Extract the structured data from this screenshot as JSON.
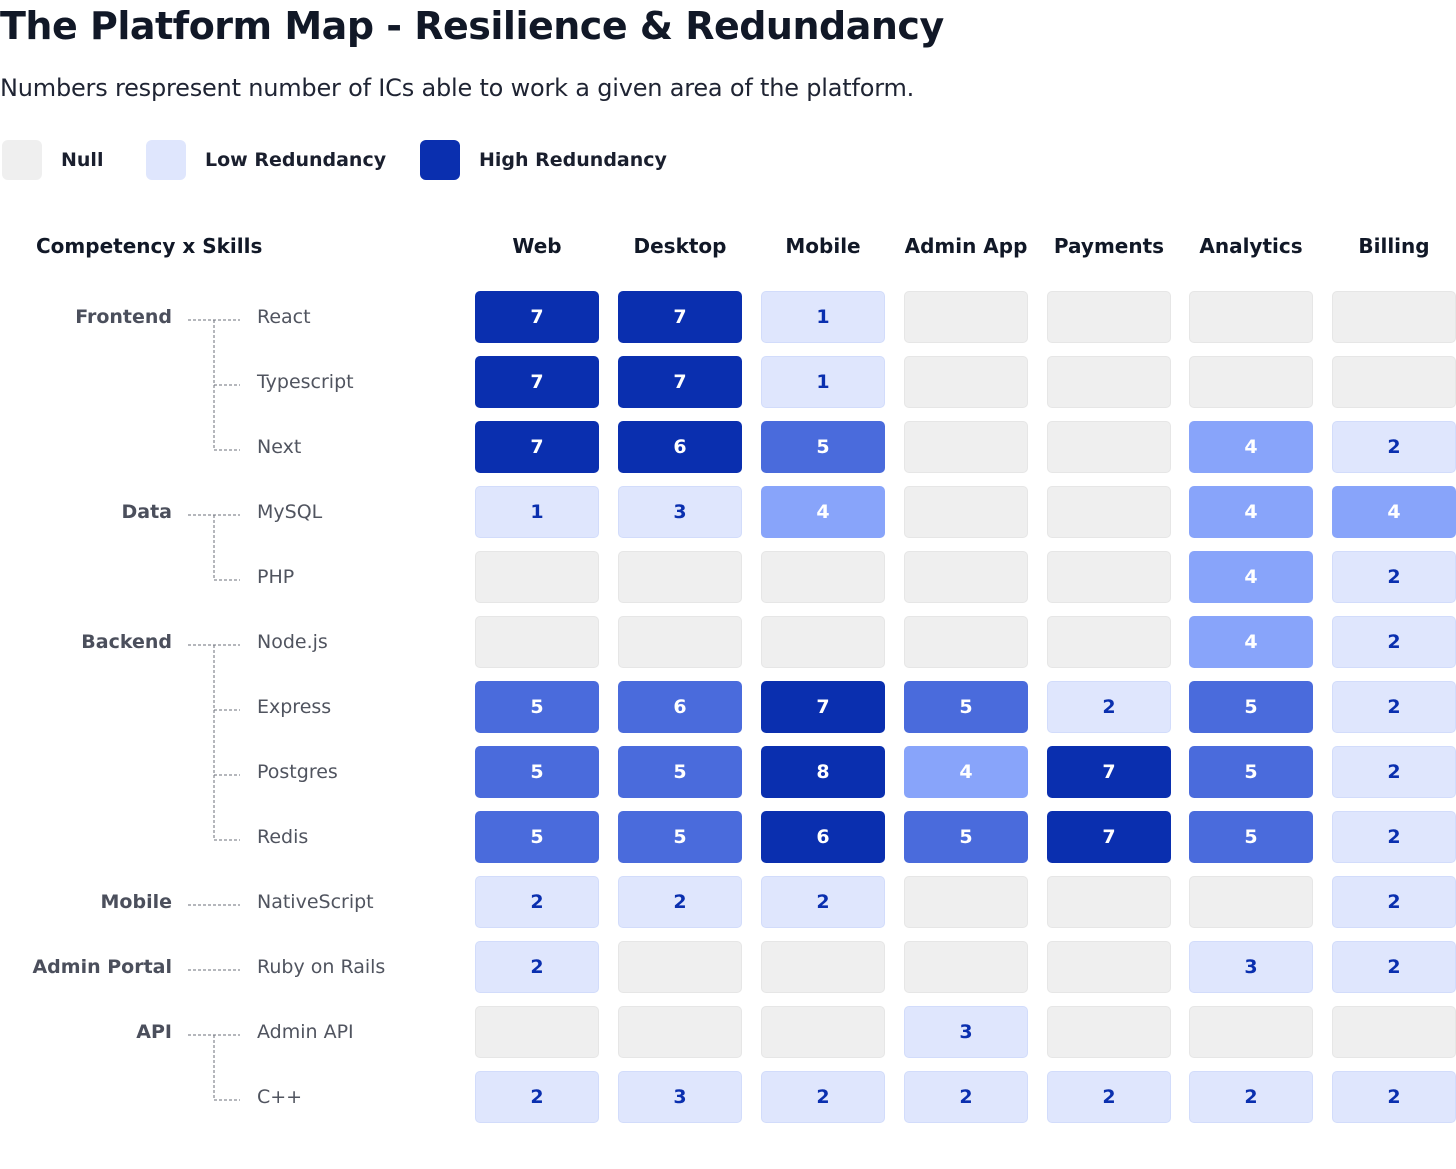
{
  "title": "The Platform Map - Resilience & Redundancy",
  "subtitle": "Numbers respresent number of ICs able to work a given area of the platform.",
  "legend": [
    {
      "label": "Null",
      "color": "#efefef"
    },
    {
      "label": "Low Redundancy",
      "color": "#dfe6fd"
    },
    {
      "label": "High Redundancy",
      "color": "#0a2faf"
    }
  ],
  "colors": {
    "null": "#efefef",
    "low": "#dfe6fd",
    "medium_light": "#88a4fa",
    "medium": "#4a6bdc",
    "high": "#0a2faf",
    "text_dark": "#0a2faf",
    "text_light": "#ffffff"
  },
  "chart_data": {
    "type": "heatmap",
    "title": "The Platform Map - Resilience & Redundancy",
    "subtitle": "Numbers respresent number of ICs able to work a given area of the platform.",
    "corner_label": "Competency x Skills",
    "columns": [
      "Web",
      "Desktop",
      "Mobile",
      "Admin App",
      "Payments",
      "Analytics",
      "Billing"
    ],
    "groups": [
      {
        "name": "Frontend",
        "skills": [
          "React",
          "Typescript",
          "Next"
        ]
      },
      {
        "name": "Data",
        "skills": [
          "MySQL",
          "PHP"
        ]
      },
      {
        "name": "Backend",
        "skills": [
          "Node.js",
          "Express",
          "Postgres",
          "Redis"
        ]
      },
      {
        "name": "Mobile",
        "skills": [
          "NativeScript"
        ]
      },
      {
        "name": "Admin Portal",
        "skills": [
          "Ruby on Rails"
        ]
      },
      {
        "name": "API",
        "skills": [
          "Admin API",
          "C++"
        ]
      }
    ],
    "values": [
      [
        7,
        7,
        1,
        null,
        null,
        null,
        null
      ],
      [
        7,
        7,
        1,
        null,
        null,
        null,
        null
      ],
      [
        7,
        6,
        5,
        null,
        null,
        4,
        2
      ],
      [
        1,
        3,
        4,
        null,
        null,
        4,
        4
      ],
      [
        null,
        null,
        null,
        null,
        null,
        4,
        2
      ],
      [
        null,
        null,
        null,
        null,
        null,
        4,
        2
      ],
      [
        5,
        6,
        7,
        5,
        2,
        5,
        2
      ],
      [
        5,
        5,
        8,
        4,
        7,
        5,
        2
      ],
      [
        5,
        5,
        6,
        5,
        7,
        5,
        2
      ],
      [
        2,
        2,
        2,
        null,
        null,
        null,
        2
      ],
      [
        2,
        null,
        null,
        null,
        null,
        3,
        2
      ],
      [
        null,
        null,
        null,
        3,
        null,
        null,
        null
      ],
      [
        2,
        3,
        2,
        2,
        2,
        2,
        2
      ]
    ],
    "legend_placement": "top-left"
  }
}
